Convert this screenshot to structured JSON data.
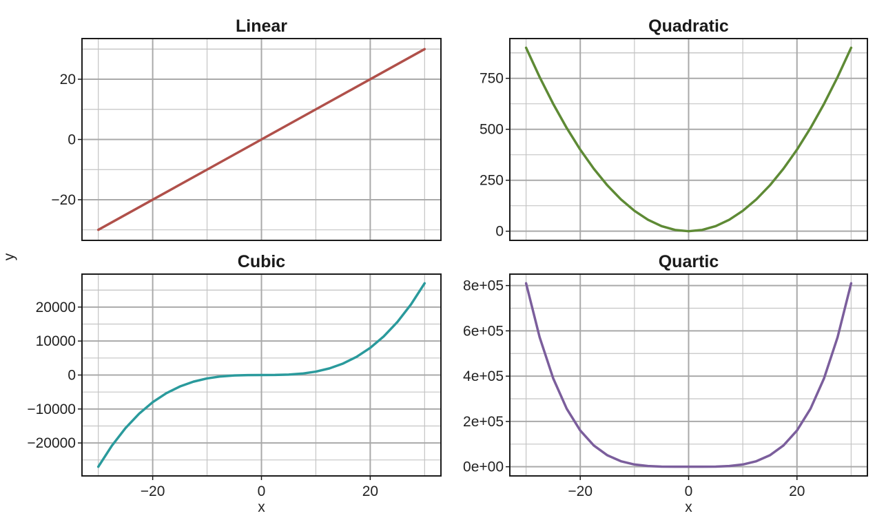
{
  "chart_data": [
    {
      "type": "line",
      "title": "Linear",
      "color": "#b0504a",
      "xlim": [
        -33,
        33
      ],
      "ylim": [
        -33.5,
        33.5
      ],
      "xticks": [
        -20,
        0,
        20
      ],
      "xtick_labels": [
        "−20",
        "0",
        "20"
      ],
      "yticks": [
        -20,
        0,
        20
      ],
      "ytick_labels": [
        "−20",
        "0",
        "20"
      ],
      "show_xticks": false,
      "x": [
        -30,
        -20,
        -10,
        0,
        10,
        20,
        30
      ],
      "y": [
        -30,
        -20,
        -10,
        0,
        10,
        20,
        30
      ],
      "grid": true
    },
    {
      "type": "line",
      "title": "Quadratic",
      "color": "#5e8a35",
      "xlim": [
        -33,
        33
      ],
      "ylim": [
        -45,
        945
      ],
      "xticks": [
        -20,
        0,
        20
      ],
      "xtick_labels": [
        "−20",
        "0",
        "20"
      ],
      "yticks": [
        0,
        250,
        500,
        750
      ],
      "ytick_labels": [
        "0",
        "250",
        "500",
        "750"
      ],
      "show_xticks": false,
      "x": [
        -30,
        -27.5,
        -25,
        -22.5,
        -20,
        -17.5,
        -15,
        -12.5,
        -10,
        -7.5,
        -5,
        -2.5,
        0,
        2.5,
        5,
        7.5,
        10,
        12.5,
        15,
        17.5,
        20,
        22.5,
        25,
        27.5,
        30
      ],
      "y": [
        900,
        756.25,
        625,
        506.25,
        400,
        306.25,
        225,
        156.25,
        100,
        56.25,
        25,
        6.25,
        0,
        6.25,
        25,
        56.25,
        100,
        156.25,
        225,
        306.25,
        400,
        506.25,
        625,
        756.25,
        900
      ],
      "grid": true
    },
    {
      "type": "line",
      "title": "Cubic",
      "color": "#2a9a9c",
      "xlim": [
        -33,
        33
      ],
      "ylim": [
        -29700,
        29700
      ],
      "xticks": [
        -20,
        0,
        20
      ],
      "xtick_labels": [
        "−20",
        "0",
        "20"
      ],
      "yticks": [
        -20000,
        -10000,
        0,
        10000,
        20000
      ],
      "ytick_labels": [
        "−20000",
        "−10000",
        "0",
        "10000",
        "20000"
      ],
      "show_xticks": true,
      "x": [
        -30,
        -27.5,
        -25,
        -22.5,
        -20,
        -17.5,
        -15,
        -12.5,
        -10,
        -7.5,
        -5,
        -2.5,
        0,
        2.5,
        5,
        7.5,
        10,
        12.5,
        15,
        17.5,
        20,
        22.5,
        25,
        27.5,
        30
      ],
      "y": [
        -27000,
        -20797,
        -15625,
        -11391,
        -8000,
        -5359,
        -3375,
        -1953,
        -1000,
        -422,
        -125,
        -16,
        0,
        16,
        125,
        422,
        1000,
        1953,
        3375,
        5359,
        8000,
        11391,
        15625,
        20797,
        27000
      ],
      "xlabel": "x",
      "grid": true
    },
    {
      "type": "line",
      "title": "Quartic",
      "color": "#7b5e9c",
      "xlim": [
        -33,
        33
      ],
      "ylim": [
        -40500,
        850500
      ],
      "xticks": [
        -20,
        0,
        20
      ],
      "xtick_labels": [
        "−20",
        "0",
        "20"
      ],
      "yticks": [
        0,
        200000,
        400000,
        600000,
        800000
      ],
      "ytick_labels": [
        "0e+00",
        "2e+05",
        "4e+05",
        "6e+05",
        "8e+05"
      ],
      "show_xticks": true,
      "x": [
        -30,
        -27.5,
        -25,
        -22.5,
        -20,
        -17.5,
        -15,
        -12.5,
        -10,
        -7.5,
        -5,
        -2.5,
        0,
        2.5,
        5,
        7.5,
        10,
        12.5,
        15,
        17.5,
        20,
        22.5,
        25,
        27.5,
        30
      ],
      "y": [
        810000,
        571914,
        390625,
        256289,
        160000,
        93789,
        50625,
        24414,
        10000,
        3164,
        625,
        39,
        0,
        39,
        625,
        3164,
        10000,
        24414,
        50625,
        93789,
        160000,
        256289,
        390625,
        571914,
        810000
      ],
      "xlabel": "x",
      "grid": true
    }
  ],
  "shared_ylabel": "y"
}
